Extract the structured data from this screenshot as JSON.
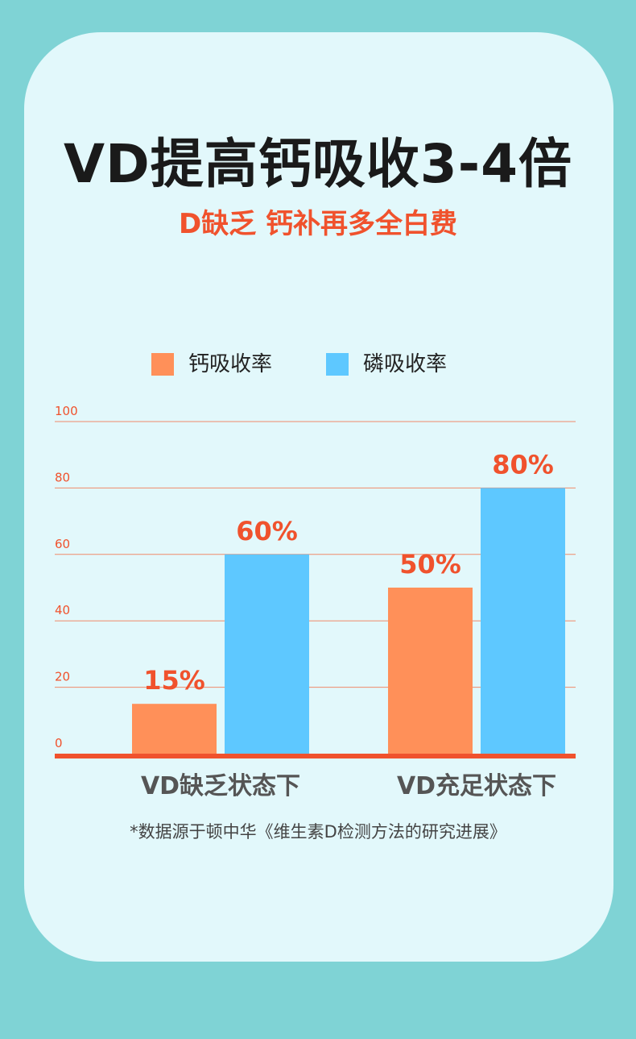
{
  "title": "VD提高钙吸收3-4倍",
  "subtitle": "D缺乏 钙补再多全白费",
  "legend": [
    {
      "label": "钙吸收率",
      "color": "#ff9059"
    },
    {
      "label": "磷吸收率",
      "color": "#5ec8ff"
    }
  ],
  "footnote": "*数据源于顿中华《维生素D检测方法的研究进展》",
  "colors": {
    "background": "#7fd3d5",
    "card": "#e2f8fb",
    "accent": "#f0522d",
    "gridline": "#f08a6a",
    "category_text": "#555555"
  },
  "chart_data": {
    "type": "bar",
    "categories": [
      "VD缺乏状态下",
      "VD充足状态下"
    ],
    "series": [
      {
        "name": "钙吸收率",
        "values": [
          15,
          50
        ],
        "labels": [
          "15%",
          "50%"
        ],
        "color": "#ff9059"
      },
      {
        "name": "磷吸收率",
        "values": [
          60,
          80
        ],
        "labels": [
          "60%",
          "80%"
        ],
        "color": "#5ec8ff"
      }
    ],
    "yticks": [
      0,
      20,
      40,
      60,
      80,
      100
    ],
    "ylim": [
      0,
      100
    ],
    "grid": true,
    "legend_position": "top-center"
  }
}
